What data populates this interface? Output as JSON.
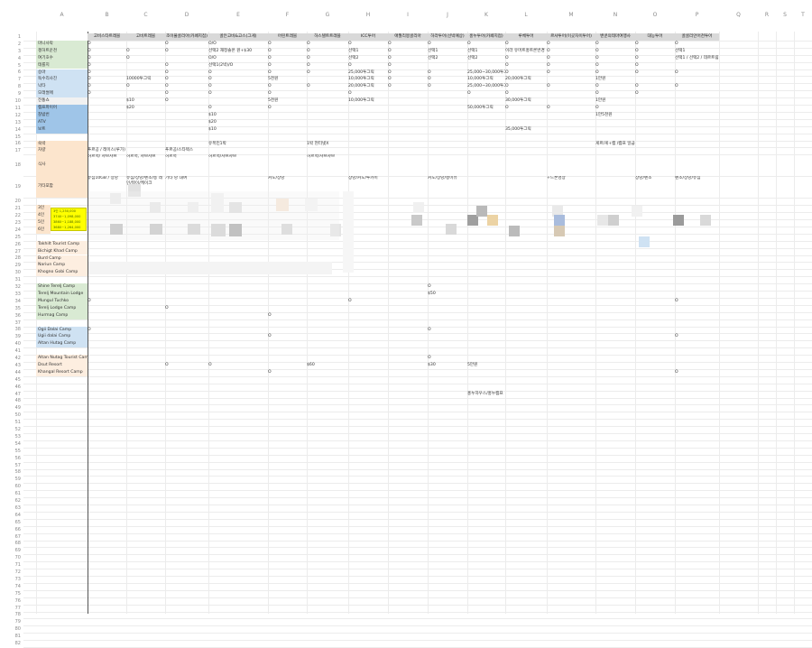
{
  "columns": [
    "A",
    "B",
    "C",
    "D",
    "E",
    "F",
    "G",
    "H",
    "I",
    "J",
    "K",
    "L",
    "M",
    "N",
    "O",
    "P",
    "Q",
    "R",
    "S",
    "T"
  ],
  "headers": [
    "고비스타트레블",
    "고비트레블",
    "조이풀골리아(카페지점)",
    "골든고비&고스(그게)",
    "어린트래블",
    "하스텔트트래블",
    "ICC투어",
    "애월리몽골리아",
    "하라투어(선박예상)",
    "홍누투어(카페지점)",
    "루체투어",
    "르샤투어(이곳차이투어)",
    "밴쿤의테마여행사",
    "대능투어",
    "골골리안어천투어"
  ],
  "rows": [
    {
      "label": "마니사막",
      "lc": "green",
      "v": [
        "O",
        "",
        "O",
        "O/O",
        "O",
        "O",
        "O",
        "O",
        "O",
        "O",
        "O",
        "O",
        "O",
        "O",
        "O"
      ]
    },
    {
      "label": "챙허트운천",
      "lc": "green",
      "v": [
        "O",
        "O",
        "O",
        "선택2 재정솔온 원+$30",
        "O",
        "O",
        "선택1",
        "O",
        "선택1",
        "선택1",
        "이라 유머트홍트론번경",
        "O",
        "O",
        "O",
        "선택1"
      ]
    },
    {
      "label": "여기호수",
      "lc": "green",
      "v": [
        "O",
        "O",
        "",
        "O/O",
        "O",
        "O",
        "선택2",
        "O",
        "선택2",
        "선택2",
        "O",
        "O",
        "O",
        "O",
        "선택1 / 선택2 / 데르트림하/진호수"
      ]
    },
    {
      "label": "테를지",
      "lc": "green",
      "v": [
        "O",
        "",
        "O",
        "선택1(2박)/O",
        "O",
        "O",
        "O",
        "O",
        "",
        "",
        "O",
        "O",
        "O",
        "O",
        ""
      ]
    },
    {
      "label": "승마",
      "lc": "blue",
      "v": [
        "O",
        "",
        "O",
        "O",
        "O",
        "O",
        "25,000투그릭",
        "O",
        "O",
        "25,000~30,000투그O",
        "O",
        "O",
        "O",
        "O",
        "O"
      ]
    },
    {
      "label": "독수리사진",
      "lc": "blue",
      "v": [
        "O",
        "10000투그릭",
        "O",
        "O",
        "5천원",
        "",
        "10,000투그릭",
        "O",
        "O",
        "10,000투그릭",
        "20,000투그릭",
        "",
        "1만원",
        "",
        ""
      ]
    },
    {
      "label": "낙타",
      "lc": "blue",
      "v": [
        "O",
        "O",
        "O",
        "O",
        "O",
        "O",
        "20,000투그릭",
        "O",
        "O",
        "25,000~30,000투그O",
        "O",
        "O",
        "O",
        "O",
        "O"
      ]
    },
    {
      "label": "모래썰매",
      "lc": "blue",
      "v": [
        "O",
        "",
        "O",
        "O",
        "O",
        "",
        "O",
        "",
        "",
        "O",
        "O",
        "",
        "O",
        "O",
        ""
      ]
    },
    {
      "label": "전통쇼",
      "lc": "lgray",
      "v": [
        "",
        "$10",
        "O",
        "",
        "5천원",
        "",
        "10,000투그릭",
        "",
        "",
        "",
        "30,000투그릭",
        "",
        "1만원",
        "",
        ""
      ]
    },
    {
      "label": "캠프파이어",
      "lc": "dblue",
      "v": [
        "",
        "$20",
        "",
        "O",
        "O",
        "",
        "",
        "",
        "",
        "50,000투그릭",
        "O",
        "O",
        "O",
        "",
        ""
      ]
    },
    {
      "label": "찰밤번",
      "lc": "dblue",
      "v": [
        "",
        "",
        "",
        "$10",
        "",
        "",
        "",
        "",
        "",
        "",
        "",
        "",
        "1만5천원",
        "",
        ""
      ]
    },
    {
      "label": "ATV",
      "lc": "dblue",
      "v": [
        "",
        "",
        "",
        "$20",
        "",
        "",
        "",
        "",
        "",
        "",
        "",
        "",
        "",
        "",
        ""
      ]
    },
    {
      "label": "보트",
      "lc": "dblue",
      "v": [
        "",
        "",
        "",
        "$10",
        "",
        "",
        "",
        "",
        "",
        "",
        "35,000투그릭",
        "",
        "",
        "",
        ""
      ]
    },
    {
      "label": "",
      "lc": "",
      "v": [
        "",
        "",
        "",
        "",
        "",
        "",
        "",
        "",
        "",
        "",
        "",
        "",
        "",
        "",
        ""
      ]
    },
    {
      "label": "숙박",
      "lc": "peach",
      "v": [
        "",
        "",
        "",
        "유목민1박",
        "",
        "1박 현터넷X",
        "",
        "",
        "",
        "",
        "",
        "",
        "게르/게+캠 /캠프 일급 $30/박/인당",
        "",
        ""
      ]
    },
    {
      "label": "차량",
      "lc": "peach",
      "v": [
        "푸르공 / 레이스(루가)",
        "",
        "푸르공/스타렉스",
        "",
        "",
        "",
        "",
        "",
        "",
        "",
        "",
        "",
        "",
        "",
        ""
      ]
    },
    {
      "label": "식사",
      "lc": "peach",
      "v": [
        "허르헉/ 샤브샤브",
        "허르헉, 샤브샤브",
        "허르헉",
        "허르헉/샤브샤브",
        "",
        "허르헉/샤브샤브",
        "",
        "",
        "",
        "",
        "",
        "",
        "",
        "",
        ""
      ]
    },
    {
      "label": "기타포함",
      "lc": "peach",
      "v": [
        "유심10GB / 장낭",
        "유심/장낭/펜조/동 레인/찡이/케이크",
        "기타 낭 대여",
        "",
        "커도/장낭",
        "",
        "장낭/커도/투카이",
        "",
        "커도/장낭/찡이유",
        "",
        "",
        "+드론영상",
        "",
        "장낭/펜조",
        "펜조/장낭/유심"
      ]
    }
  ],
  "price_labels": [
    "3인",
    "4인",
    "5인",
    "6인"
  ],
  "price_box": [
    "3인 1,250,000",
    "3740~1,098,000",
    "3860~1,188,000",
    "3680~1,264,000"
  ],
  "camps": [
    {
      "name": "Takhilt Tourist Camp",
      "c": "peachl",
      "v": {}
    },
    {
      "name": "Bichigt Khad Camp",
      "c": "peachl",
      "v": {}
    },
    {
      "name": "Burd Camp",
      "c": "peachl",
      "v": {}
    },
    {
      "name": "Nariun Camp",
      "c": "peachl",
      "v": {}
    },
    {
      "name": "Khogno Gobi Camp",
      "c": "peachl",
      "v": {}
    },
    {
      "name": "",
      "c": "",
      "v": {}
    },
    {
      "name": "Shine Terelj Camp",
      "c": "green",
      "v": {
        "8": "O"
      }
    },
    {
      "name": "Terelj Mountain Lodge",
      "c": "green",
      "v": {
        "8": "$50"
      }
    },
    {
      "name": "Mungul Tuchko",
      "c": "green",
      "v": {
        "0": "O",
        "6": "O",
        "14": "O"
      }
    },
    {
      "name": "Terelj Lodge Camp",
      "c": "green",
      "v": {
        "2": "O"
      }
    },
    {
      "name": "Hurmag Camp",
      "c": "green",
      "v": {
        "4": "O"
      }
    },
    {
      "name": "",
      "c": "",
      "v": {}
    },
    {
      "name": "Ogii Dalai Camp",
      "c": "blue",
      "v": {
        "0": "O",
        "8": "O"
      }
    },
    {
      "name": "Ugii dalai Camp",
      "c": "blue",
      "v": {
        "4": "O",
        "14": "O"
      }
    },
    {
      "name": "Altan Hutag Camp",
      "c": "blue",
      "v": {}
    },
    {
      "name": "",
      "c": "",
      "v": {}
    },
    {
      "name": "Altan Nutag Tourist Camp",
      "c": "peachl",
      "v": {
        "8": "O"
      }
    },
    {
      "name": "Dsut Resort",
      "c": "peachl",
      "v": {
        "2": "O",
        "3": "O",
        "5": "$60",
        "8": "$30",
        "9": "5만원"
      }
    },
    {
      "name": "Khangal Resort Camp",
      "c": "peachl",
      "v": {
        "4": "O",
        "14": "O"
      }
    },
    {
      "name": "",
      "c": "",
      "v": {}
    },
    {
      "name": "",
      "c": "",
      "v": {}
    },
    {
      "name": "",
      "c": "",
      "v": {
        "9": "홍누하우스/홍누캠프"
      }
    }
  ],
  "row_count": "82"
}
